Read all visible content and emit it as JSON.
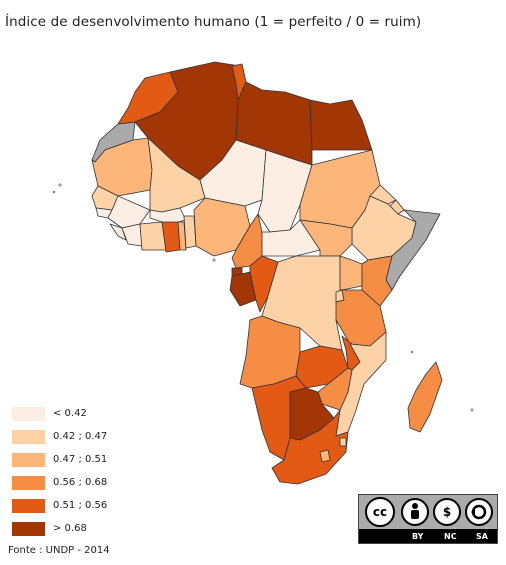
{
  "title": "Índice de desenvolvimento humano (1 = perfeito / 0 = ruim)",
  "legend": [
    {
      "label": "< 0.42",
      "color": "#fdeee3"
    },
    {
      "label": "0.42 ; 0.47",
      "color": "#fdd2a6"
    },
    {
      "label": "0.47 ; 0.51",
      "color": "#fdb67a"
    },
    {
      "label": "0.56 ; 0.68",
      "color": "#f68d45"
    },
    {
      "label": "0.51 ; 0.56",
      "color": "#e25a14"
    },
    {
      "label": "> 0.68",
      "color": "#a33605"
    }
  ],
  "colors": {
    "no_data": "#aaaaaa",
    "border": "#333333"
  },
  "source": "Fonte : UNDP - 2014",
  "license": {
    "icons": [
      "cc-icon",
      "by-icon",
      "nc-icon",
      "sa-icon"
    ],
    "labels": [
      "BY",
      "NC",
      "SA"
    ]
  }
}
